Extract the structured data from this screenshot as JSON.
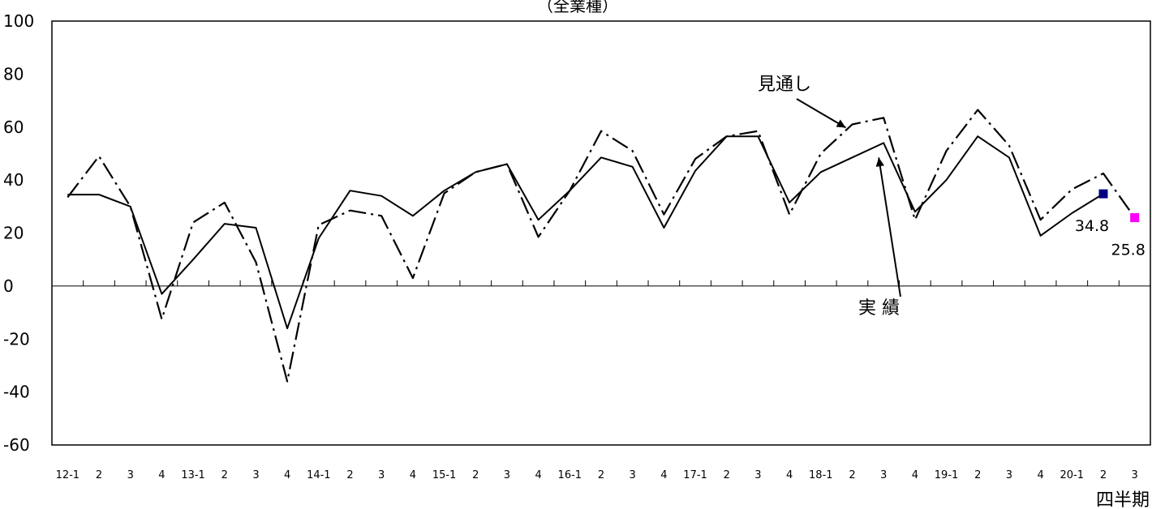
{
  "chart_data": {
    "type": "line",
    "title": "（全業種）",
    "xlabel": "四半期",
    "ylabel": "",
    "ylim": [
      -60,
      100
    ],
    "yticks": [
      100,
      80,
      60,
      40,
      20,
      0,
      -20,
      -40,
      -60
    ],
    "ytick_labels": [
      "100",
      "80",
      "60",
      "40",
      "20",
      "0",
      "-20",
      "-40",
      "-60"
    ],
    "grid": false,
    "categories": [
      "12-1",
      "2",
      "3",
      "4",
      "13-1",
      "2",
      "3",
      "4",
      "14-1",
      "2",
      "3",
      "4",
      "15-1",
      "2",
      "3",
      "4",
      "16-1",
      "2",
      "3",
      "4",
      "17-1",
      "2",
      "3",
      "4",
      "18-1",
      "2",
      "3",
      "4",
      "19-1",
      "2",
      "3",
      "4",
      "20-1",
      "2",
      "3"
    ],
    "series": [
      {
        "key": "actual",
        "values": [
          34.5,
          34.5,
          30,
          -3,
          10,
          23.5,
          22,
          -16,
          18,
          36,
          34,
          26.5,
          36,
          43,
          46,
          25,
          36,
          48.5,
          45,
          22,
          43.5,
          56.5,
          56.5,
          31.5,
          43,
          48.5,
          54,
          28,
          40,
          56.5,
          48.5,
          19,
          27.5,
          34.8,
          null
        ],
        "color": "#000000",
        "style": "solid"
      },
      {
        "key": "forecast",
        "values": [
          33.5,
          49,
          30,
          -12.5,
          24,
          31.5,
          9,
          -36,
          23,
          28.5,
          26.5,
          3,
          35,
          43,
          46,
          18.5,
          36,
          58.5,
          51,
          27,
          48,
          56.5,
          58.5,
          27,
          50,
          61,
          63.5,
          25,
          51,
          66.5,
          53,
          25,
          36.5,
          42.5,
          25.8
        ],
        "color": "#000000",
        "style": "dash-dot"
      }
    ],
    "markers": [
      {
        "index": 33,
        "value": 34.8,
        "color": "#000080",
        "label": "34.8"
      },
      {
        "index": 34,
        "value": 25.8,
        "color": "#ff00ff",
        "label": "25.8"
      }
    ],
    "annotations": [
      {
        "text": "見通し",
        "series": "forecast"
      },
      {
        "text": "実 績",
        "series": "actual"
      }
    ]
  }
}
